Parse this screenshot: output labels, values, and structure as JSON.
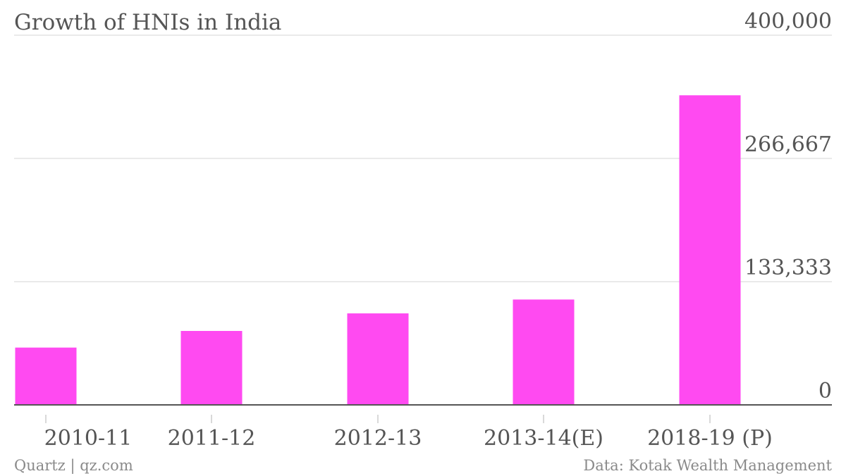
{
  "chart_data": {
    "type": "bar",
    "title": "Growth of HNIs in India",
    "categories": [
      "2010-11",
      "2011-12",
      "2012-13",
      "2013-14(E)",
      "2018-19 (P)"
    ],
    "values": [
      62000,
      80000,
      99000,
      114000,
      335000
    ],
    "xlabel": "",
    "ylabel": "",
    "ylim": [
      0,
      400000
    ],
    "y_ticks": [
      "0",
      "133,333",
      "266,667",
      "400,000"
    ],
    "y_tick_values": [
      0,
      133333,
      266667,
      400000
    ],
    "y_axis_position": "right",
    "grid": true,
    "legend": "none",
    "bar_color": "#ff4af1"
  },
  "footer": {
    "source_left": "Quartz | qz.com",
    "source_right": "Data: Kotak Wealth Management"
  }
}
